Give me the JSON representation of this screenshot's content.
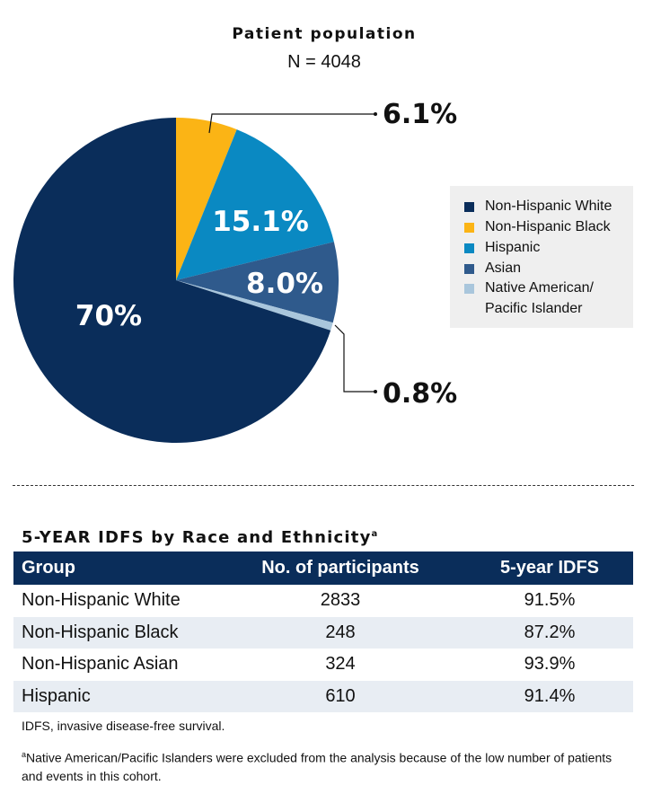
{
  "chart_data": {
    "type": "pie",
    "title": "Patient population",
    "subtitle": "N = 4048",
    "start_angle_deg": 0,
    "direction": "clockwise",
    "slices": [
      {
        "name": "Non-Hispanic Black",
        "value": 6.1,
        "label": "6.1%",
        "color": "#fbb415"
      },
      {
        "name": "Hispanic",
        "value": 15.1,
        "label": "15.1%",
        "color": "#0a89c2"
      },
      {
        "name": "Asian",
        "value": 8.0,
        "label": "8.0%",
        "color": "#2f5a8c"
      },
      {
        "name": "Native American/ Pacific Islander",
        "value": 0.8,
        "label": "0.8%",
        "color": "#a9c6dc"
      },
      {
        "name": "Non-Hispanic White",
        "value": 70,
        "label": "70%",
        "color": "#0a2d5a"
      }
    ],
    "legend": [
      {
        "label": "Non-Hispanic White",
        "color": "#0a2d5a"
      },
      {
        "label": "Non-Hispanic Black",
        "color": "#fbb415"
      },
      {
        "label": "Hispanic",
        "color": "#0a89c2"
      },
      {
        "label": "Asian",
        "color": "#2f5a8c"
      },
      {
        "label": "Native American/",
        "label2": "Pacific Islander",
        "color": "#a9c6dc"
      }
    ],
    "legend_position": "right"
  },
  "table": {
    "title": "5-YEAR IDFS by Race and Ethnicity",
    "title_sup": "a",
    "headers": [
      "Group",
      "No. of participants",
      "5-year IDFS"
    ],
    "rows": [
      [
        "Non-Hispanic White",
        "2833",
        "91.5%"
      ],
      [
        "Non-Hispanic Black",
        "248",
        "87.2%"
      ],
      [
        "Non-Hispanic Asian",
        "324",
        "93.9%"
      ],
      [
        "Hispanic",
        "610",
        "91.4%"
      ]
    ]
  },
  "footnotes": {
    "abbrev": "IDFS, invasive disease-free survival.",
    "note_marker": "a",
    "note": "Native American/Pacific Islanders were excluded from the analysis because of the low number of patients and events in this cohort."
  }
}
